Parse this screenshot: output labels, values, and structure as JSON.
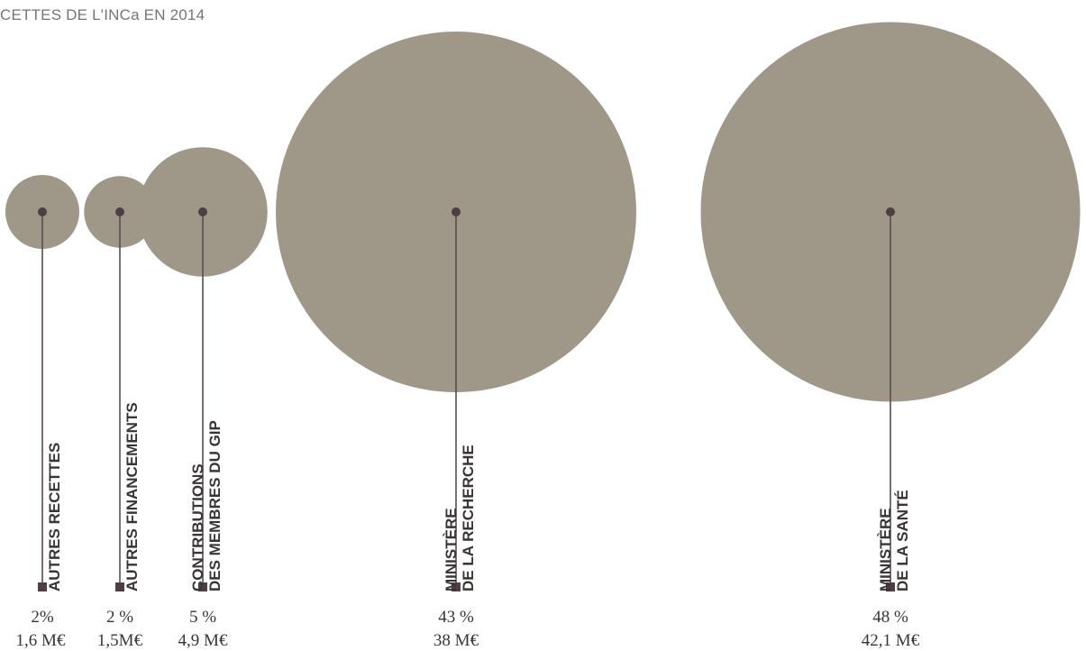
{
  "chart_data": {
    "type": "bubble",
    "title": "CETTES DE L'INCa EN 2014",
    "colors": {
      "bubble": "#9f9888",
      "line": "#5a4b50",
      "marker": "#4e3f45",
      "text": "#3a3535"
    },
    "items": [
      {
        "label_lines": [
          "AUTRES RECETTES"
        ],
        "percent": 2,
        "percent_label": "2%",
        "amount": 1.6,
        "amount_label": "1,6 M€"
      },
      {
        "label_lines": [
          "AUTRES FINANCEMENTS"
        ],
        "percent": 2,
        "percent_label": "2 %",
        "amount": 1.5,
        "amount_label": "1,5M€"
      },
      {
        "label_lines": [
          "CONTRIBUTIONS",
          "DES MEMBRES DU GIP"
        ],
        "percent": 5,
        "percent_label": "5 %",
        "amount": 4.9,
        "amount_label": "4,9 M€"
      },
      {
        "label_lines": [
          "MINISTÈRE",
          "DE LA RECHERCHE"
        ],
        "percent": 43,
        "percent_label": "43 %",
        "amount": 38,
        "amount_label": "38 M€"
      },
      {
        "label_lines": [
          "MINISTÈRE",
          "DE LA SANTÉ"
        ],
        "percent": 48,
        "percent_label": "48 %",
        "amount": 42.1,
        "amount_label": "42,1 M€"
      }
    ]
  }
}
